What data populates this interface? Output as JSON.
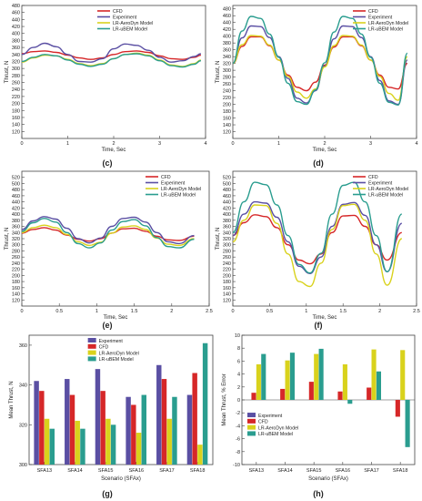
{
  "figure": {
    "panel_labels": [
      "(c)",
      "(d)",
      "(e)",
      "(f)",
      "(g)",
      "(h)"
    ]
  },
  "colors": {
    "CFD": "#d62728",
    "Experiment": "#5a4fa3",
    "LR-AeroDyn Model": "#d9d21c",
    "LR-uBEM Model": "#2a9d8f",
    "axis": "#444444"
  },
  "chart_data": [
    {
      "panel": "(c)",
      "type": "line",
      "xlabel": "Time, Sec",
      "ylabel": "Thrust, N",
      "xlim": [
        0,
        4
      ],
      "ylim": [
        100,
        480
      ],
      "xticks": [
        0,
        1,
        2,
        3,
        4
      ],
      "yticks": [
        120,
        140,
        160,
        180,
        200,
        220,
        240,
        260,
        280,
        300,
        320,
        340,
        360,
        380,
        400,
        420,
        440,
        460,
        480
      ],
      "legend": "top-center",
      "series": [
        {
          "name": "CFD",
          "x": [
            0,
            0.25,
            0.5,
            0.75,
            1.0,
            1.25,
            1.5,
            1.75,
            2.0,
            2.25,
            2.5,
            2.75,
            3.0,
            3.25,
            3.5,
            3.75,
            3.9
          ],
          "y": [
            342,
            348,
            350,
            346,
            338,
            330,
            326,
            330,
            340,
            348,
            350,
            346,
            336,
            328,
            326,
            332,
            338
          ]
        },
        {
          "name": "Experiment",
          "x": [
            0,
            0.25,
            0.5,
            0.75,
            1.0,
            1.25,
            1.5,
            1.75,
            2.0,
            2.25,
            2.5,
            2.75,
            3.0,
            3.25,
            3.5,
            3.75,
            3.9
          ],
          "y": [
            340,
            360,
            372,
            362,
            340,
            320,
            318,
            328,
            356,
            370,
            366,
            352,
            332,
            318,
            322,
            334,
            342
          ]
        },
        {
          "name": "LR-AeroDyn Model",
          "x": [
            0,
            0.25,
            0.5,
            0.75,
            1.0,
            1.25,
            1.5,
            1.75,
            2.0,
            2.25,
            2.5,
            2.75,
            3.0,
            3.25,
            3.5,
            3.75,
            3.9
          ],
          "y": [
            318,
            330,
            338,
            336,
            326,
            314,
            308,
            314,
            328,
            340,
            344,
            338,
            324,
            310,
            306,
            314,
            324
          ]
        },
        {
          "name": "LR-uBEM Model",
          "x": [
            0,
            0.25,
            0.5,
            0.75,
            1.0,
            1.25,
            1.5,
            1.75,
            2.0,
            2.25,
            2.5,
            2.75,
            3.0,
            3.25,
            3.5,
            3.75,
            3.9
          ],
          "y": [
            320,
            332,
            340,
            336,
            324,
            312,
            306,
            312,
            328,
            340,
            342,
            336,
            322,
            308,
            304,
            312,
            322
          ]
        }
      ]
    },
    {
      "panel": "(d)",
      "type": "line",
      "xlabel": "Time, Sec",
      "ylabel": "Thrust, N",
      "xlim": [
        0,
        4
      ],
      "ylim": [
        100,
        490
      ],
      "xticks": [
        0,
        1,
        2,
        3,
        4
      ],
      "yticks": [
        120,
        140,
        160,
        180,
        200,
        220,
        240,
        260,
        280,
        300,
        320,
        340,
        360,
        380,
        400,
        420,
        440,
        460,
        480
      ],
      "legend": "top-right",
      "series": [
        {
          "name": "CFD",
          "x": [
            0,
            0.2,
            0.4,
            0.6,
            0.8,
            1.0,
            1.2,
            1.4,
            1.6,
            1.8,
            2.0,
            2.2,
            2.4,
            2.6,
            2.8,
            3.0,
            3.2,
            3.4,
            3.6,
            3.8
          ],
          "y": [
            320,
            370,
            398,
            398,
            372,
            330,
            286,
            250,
            240,
            265,
            315,
            368,
            398,
            398,
            372,
            330,
            286,
            250,
            245,
            320
          ]
        },
        {
          "name": "Experiment",
          "x": [
            0,
            0.2,
            0.4,
            0.6,
            0.8,
            1.0,
            1.2,
            1.4,
            1.6,
            1.8,
            2.0,
            2.2,
            2.4,
            2.6,
            2.8,
            3.0,
            3.2,
            3.4,
            3.6,
            3.8
          ],
          "y": [
            320,
            395,
            430,
            428,
            396,
            340,
            276,
            218,
            204,
            240,
            312,
            392,
            430,
            428,
            396,
            340,
            270,
            210,
            200,
            330
          ]
        },
        {
          "name": "LR-AeroDyn Model",
          "x": [
            0,
            0.2,
            0.4,
            0.6,
            0.8,
            1.0,
            1.2,
            1.4,
            1.6,
            1.8,
            2.0,
            2.2,
            2.4,
            2.6,
            2.8,
            3.0,
            3.2,
            3.4,
            3.6,
            3.8
          ],
          "y": [
            320,
            375,
            402,
            400,
            374,
            330,
            282,
            236,
            218,
            245,
            310,
            372,
            402,
            400,
            374,
            330,
            282,
            232,
            212,
            340
          ]
        },
        {
          "name": "LR-uBEM Model",
          "x": [
            0,
            0.2,
            0.4,
            0.6,
            0.8,
            1.0,
            1.2,
            1.4,
            1.6,
            1.8,
            2.0,
            2.2,
            2.4,
            2.6,
            2.8,
            3.0,
            3.2,
            3.4,
            3.6,
            3.8
          ],
          "y": [
            320,
            415,
            458,
            452,
            406,
            338,
            262,
            208,
            200,
            242,
            322,
            412,
            458,
            452,
            406,
            338,
            262,
            206,
            198,
            350
          ]
        }
      ]
    },
    {
      "panel": "(e)",
      "type": "line",
      "xlabel": "Time, Sec",
      "ylabel": "Thrust, N",
      "xlim": [
        0,
        2.5
      ],
      "ylim": [
        100,
        540
      ],
      "xticks": [
        0,
        0.5,
        1.0,
        1.5,
        2.0,
        2.5
      ],
      "yticks": [
        120,
        140,
        160,
        180,
        200,
        220,
        240,
        260,
        280,
        300,
        320,
        340,
        360,
        380,
        400,
        420,
        440,
        460,
        480,
        500,
        520
      ],
      "legend": "top-right",
      "series": [
        {
          "name": "CFD",
          "x": [
            0,
            0.15,
            0.3,
            0.45,
            0.6,
            0.75,
            0.9,
            1.05,
            1.2,
            1.35,
            1.5,
            1.65,
            1.8,
            1.95,
            2.1,
            2.3
          ],
          "y": [
            338,
            350,
            356,
            348,
            332,
            318,
            312,
            320,
            338,
            352,
            354,
            344,
            328,
            316,
            314,
            328
          ]
        },
        {
          "name": "Experiment",
          "x": [
            0,
            0.15,
            0.3,
            0.45,
            0.6,
            0.75,
            0.9,
            1.05,
            1.2,
            1.35,
            1.5,
            1.65,
            1.8,
            1.95,
            2.1,
            2.3
          ],
          "y": [
            350,
            378,
            392,
            384,
            354,
            320,
            306,
            322,
            360,
            386,
            390,
            374,
            340,
            310,
            304,
            330
          ]
        },
        {
          "name": "LR-AeroDyn Model",
          "x": [
            0,
            0.15,
            0.3,
            0.45,
            0.6,
            0.75,
            0.9,
            1.05,
            1.2,
            1.35,
            1.5,
            1.65,
            1.8,
            1.95,
            2.1,
            2.3
          ],
          "y": [
            340,
            356,
            364,
            356,
            334,
            310,
            298,
            308,
            338,
            358,
            362,
            350,
            322,
            302,
            298,
            320
          ]
        },
        {
          "name": "LR-uBEM Model",
          "x": [
            0,
            0.15,
            0.3,
            0.45,
            0.6,
            0.75,
            0.9,
            1.05,
            1.2,
            1.35,
            1.5,
            1.65,
            1.8,
            1.95,
            2.1,
            2.3
          ],
          "y": [
            344,
            372,
            386,
            374,
            340,
            304,
            290,
            306,
            348,
            376,
            382,
            362,
            324,
            294,
            290,
            318
          ]
        }
      ]
    },
    {
      "panel": "(f)",
      "type": "line",
      "xlabel": "Time, Sec",
      "ylabel": "Thrust, N",
      "xlim": [
        0,
        2.5
      ],
      "ylim": [
        100,
        540
      ],
      "xticks": [
        0,
        0.5,
        1.0,
        1.5,
        2.0,
        2.5
      ],
      "yticks": [
        120,
        140,
        160,
        180,
        200,
        220,
        240,
        260,
        280,
        300,
        320,
        340,
        360,
        380,
        400,
        420,
        440,
        460,
        480,
        500,
        520
      ],
      "legend": "top-right",
      "series": [
        {
          "name": "CFD",
          "x": [
            0,
            0.15,
            0.3,
            0.45,
            0.6,
            0.75,
            0.9,
            1.05,
            1.2,
            1.35,
            1.5,
            1.65,
            1.8,
            1.95,
            2.1,
            2.3
          ],
          "y": [
            330,
            372,
            398,
            392,
            356,
            300,
            250,
            238,
            270,
            340,
            394,
            396,
            360,
            300,
            250,
            340
          ]
        },
        {
          "name": "Experiment",
          "x": [
            0,
            0.15,
            0.3,
            0.45,
            0.6,
            0.75,
            0.9,
            1.05,
            1.2,
            1.35,
            1.5,
            1.65,
            1.8,
            1.95,
            2.1,
            2.3
          ],
          "y": [
            330,
            400,
            440,
            436,
            390,
            310,
            230,
            206,
            260,
            360,
            432,
            438,
            396,
            300,
            212,
            370
          ]
        },
        {
          "name": "LR-AeroDyn Model",
          "x": [
            0,
            0.15,
            0.3,
            0.45,
            0.6,
            0.75,
            0.9,
            1.05,
            1.2,
            1.35,
            1.5,
            1.65,
            1.8,
            1.95,
            2.1,
            2.3
          ],
          "y": [
            310,
            380,
            430,
            428,
            370,
            270,
            180,
            164,
            240,
            350,
            428,
            432,
            380,
            270,
            168,
            320
          ]
        },
        {
          "name": "LR-uBEM Model",
          "x": [
            0,
            0.15,
            0.3,
            0.45,
            0.6,
            0.75,
            0.9,
            1.05,
            1.2,
            1.35,
            1.5,
            1.65,
            1.8,
            1.95,
            2.1,
            2.3
          ],
          "y": [
            340,
            440,
            504,
            496,
            430,
            330,
            236,
            208,
            272,
            400,
            494,
            504,
            440,
            330,
            212,
            400
          ]
        }
      ]
    },
    {
      "panel": "(g)",
      "type": "bar",
      "xlabel": "Scenario (SFAx)",
      "ylabel": "Mean Thrust, N",
      "categories": [
        "SFA13",
        "SFA14",
        "SFA15",
        "SFA16",
        "SFA17",
        "SFA18"
      ],
      "ylim": [
        300,
        365
      ],
      "yticks": [
        300,
        320,
        340,
        360
      ],
      "legend": "top-right",
      "series": [
        {
          "name": "Experiment",
          "values": [
            342,
            343,
            348,
            334,
            350,
            335
          ]
        },
        {
          "name": "CFD",
          "values": [
            337,
            335,
            337,
            330,
            343,
            346
          ]
        },
        {
          "name": "LR-AeroDyn Model",
          "values": [
            323,
            322,
            323,
            316,
            323,
            310
          ]
        },
        {
          "name": "LR-uBEM Model",
          "values": [
            318,
            318,
            320,
            335,
            334,
            361
          ]
        }
      ]
    },
    {
      "panel": "(h)",
      "type": "bar",
      "xlabel": "Scenario (SFAx)",
      "ylabel": "Mean Thrust, % Error",
      "categories": [
        "SFA13",
        "SFA14",
        "SFA15",
        "SFA16",
        "SFA17",
        "SFA18"
      ],
      "ylim": [
        -10,
        10
      ],
      "yticks": [
        -10,
        -8,
        -6,
        -4,
        -2,
        0,
        2,
        4,
        6,
        8,
        10
      ],
      "legend": "bottom-left",
      "series": [
        {
          "name": "Experiment",
          "values": [
            0,
            0,
            0,
            0,
            0,
            0
          ]
        },
        {
          "name": "CFD",
          "values": [
            1.1,
            1.7,
            2.8,
            1.3,
            1.9,
            -2.6
          ]
        },
        {
          "name": "LR-AeroDyn Model",
          "values": [
            5.5,
            6.1,
            7.1,
            5.5,
            7.8,
            7.7
          ]
        },
        {
          "name": "LR-uBEM Model",
          "values": [
            7.1,
            7.3,
            7.9,
            -0.6,
            4.4,
            -7.3
          ]
        }
      ]
    }
  ]
}
